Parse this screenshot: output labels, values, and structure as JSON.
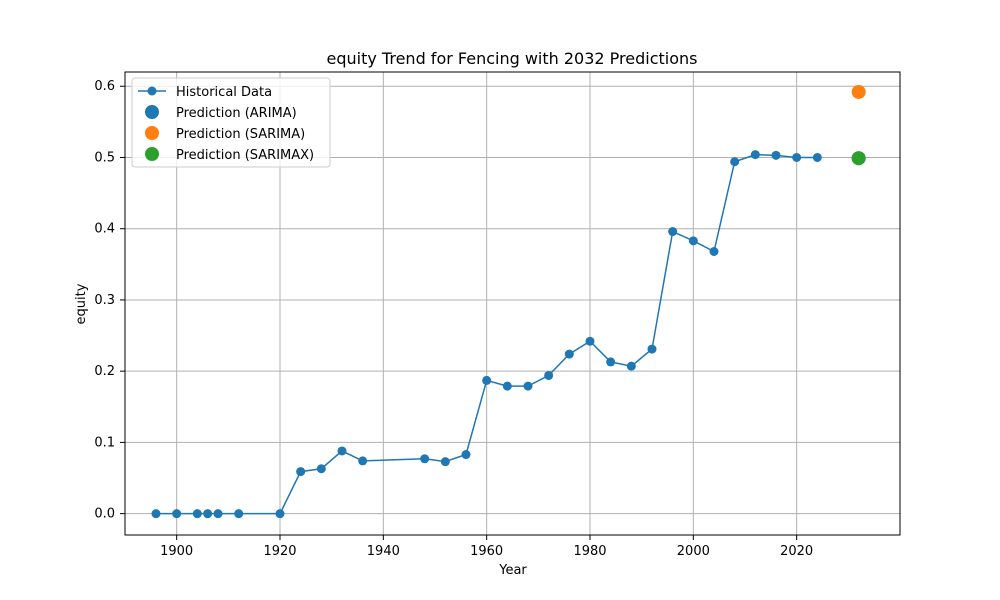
{
  "chart_data": {
    "type": "line",
    "title": "equity Trend for Fencing with 2032 Predictions",
    "xlabel": "Year",
    "ylabel": "equity",
    "xlim": [
      1890,
      2040
    ],
    "ylim": [
      -0.03,
      0.62
    ],
    "x_ticks": [
      1900,
      1920,
      1940,
      1960,
      1980,
      2000,
      2020
    ],
    "y_ticks": [
      0.0,
      0.1,
      0.2,
      0.3,
      0.4,
      0.5,
      0.6
    ],
    "grid": true,
    "legend_position": "top-left",
    "series": [
      {
        "name": "Historical Data",
        "type": "line-marker",
        "color": "#1f77b4",
        "x": [
          1896,
          1900,
          1904,
          1906,
          1908,
          1912,
          1920,
          1924,
          1928,
          1932,
          1936,
          1948,
          1952,
          1956,
          1960,
          1964,
          1968,
          1972,
          1976,
          1980,
          1984,
          1988,
          1992,
          1996,
          2000,
          2004,
          2008,
          2012,
          2016,
          2020,
          2024
        ],
        "y": [
          0.0,
          0.0,
          0.0,
          0.0,
          0.0,
          0.0,
          0.0,
          0.059,
          0.063,
          0.088,
          0.074,
          0.077,
          0.073,
          0.083,
          0.187,
          0.179,
          0.179,
          0.194,
          0.224,
          0.242,
          0.213,
          0.207,
          0.231,
          0.396,
          0.383,
          0.368,
          0.494,
          0.504,
          0.503,
          0.5,
          0.5
        ]
      },
      {
        "name": "Prediction (ARIMA)",
        "type": "point",
        "color": "#1f77b4",
        "x": [
          2032
        ],
        "y": [
          0.499
        ]
      },
      {
        "name": "Prediction (SARIMA)",
        "type": "point",
        "color": "#ff7f0e",
        "x": [
          2032
        ],
        "y": [
          0.592
        ]
      },
      {
        "name": "Prediction (SARIMAX)",
        "type": "point",
        "color": "#2ca02c",
        "x": [
          2032
        ],
        "y": [
          0.499
        ]
      }
    ]
  }
}
